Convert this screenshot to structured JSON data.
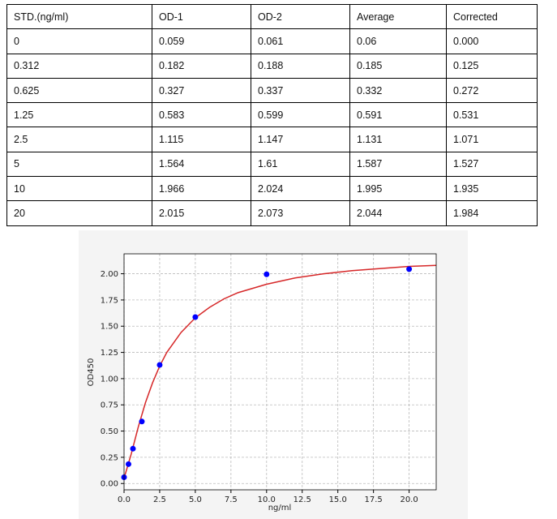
{
  "table": {
    "header": [
      "STD.(ng/ml)",
      "OD-1",
      "OD-2",
      "Average",
      "Corrected"
    ],
    "rows": [
      [
        "0",
        "0.059",
        "0.061",
        "0.06",
        "0.000"
      ],
      [
        "0.312",
        "0.182",
        "0.188",
        "0.185",
        "0.125"
      ],
      [
        "0.625",
        "0.327",
        "0.337",
        "0.332",
        "0.272"
      ],
      [
        "1.25",
        "0.583",
        "0.599",
        "0.591",
        "0.531"
      ],
      [
        "2.5",
        "1.115",
        "1.147",
        "1.131",
        "1.071"
      ],
      [
        "5",
        "1.564",
        "1.61",
        "1.587",
        "1.527"
      ],
      [
        "10",
        "1.966",
        "2.024",
        "1.995",
        "1.935"
      ],
      [
        "20",
        "2.015",
        "2.073",
        "2.044",
        "1.984"
      ]
    ]
  },
  "chart_data": {
    "type": "scatter",
    "x_label": "ng/ml",
    "y_label": "OD450",
    "xlim": [
      0,
      21.9
    ],
    "ylim": [
      -0.06,
      2.19
    ],
    "grid": true,
    "xticks": [
      {
        "value": 0,
        "label": "0.0"
      },
      2.5,
      {
        "value": 5,
        "label": "5.0"
      },
      7.5,
      {
        "value": 10,
        "label": "10.0"
      },
      12.5,
      {
        "value": 15,
        "label": "15.0"
      },
      17.5,
      {
        "value": 20,
        "label": "20.0"
      }
    ],
    "yticks": [
      {
        "value": 0,
        "label": "0.00"
      },
      {
        "value": 0.25,
        "label": "0.25"
      },
      {
        "value": 0.5,
        "label": "0.50"
      },
      {
        "value": 0.75,
        "label": "0.75"
      },
      {
        "value": 1,
        "label": "1.00"
      },
      {
        "value": 1.25,
        "label": "1.25"
      },
      {
        "value": 1.5,
        "label": "1.50"
      },
      {
        "value": 1.75,
        "label": "1.75"
      },
      {
        "value": 2,
        "label": "2.00"
      }
    ],
    "series": [
      {
        "type": "line",
        "color": "#d62728",
        "x": [
          0,
          0.5,
          1,
          1.5,
          2,
          2.5,
          3,
          4,
          5,
          6,
          7,
          8,
          10,
          12,
          14,
          16,
          18,
          20,
          21.9
        ],
        "values": [
          0.05,
          0.28,
          0.54,
          0.77,
          0.96,
          1.12,
          1.25,
          1.44,
          1.58,
          1.68,
          1.76,
          1.82,
          1.9,
          1.96,
          2.0,
          2.03,
          2.05,
          2.07,
          2.08
        ]
      },
      {
        "type": "scatter",
        "color": "#0000ff",
        "x": [
          0,
          0.312,
          0.625,
          1.25,
          2.5,
          5,
          10,
          20
        ],
        "values": [
          0.06,
          0.185,
          0.332,
          0.591,
          1.131,
          1.587,
          1.995,
          2.044
        ]
      }
    ]
  }
}
